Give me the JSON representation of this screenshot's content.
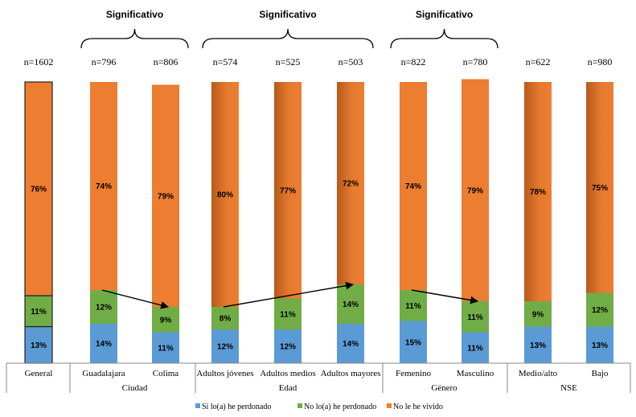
{
  "chart_data": {
    "type": "bar",
    "stacked": true,
    "categories": [
      "General",
      "Guadalajara",
      "Colima",
      "Adultos jóvenes",
      "Adultos medios",
      "Adultos mayores",
      "Femenino",
      "Masculino",
      "Medio/alto",
      "Bajo"
    ],
    "n_labels": [
      "n=1602",
      "n=796",
      "n=806",
      "n=574",
      "n=525",
      "n=503",
      "n=822",
      "n=780",
      "n=622",
      "n=980"
    ],
    "groups": [
      {
        "label": "",
        "start": 0,
        "end": 0
      },
      {
        "label": "Ciudad",
        "start": 1,
        "end": 2
      },
      {
        "label": "Edad",
        "start": 3,
        "end": 5
      },
      {
        "label": "Género",
        "start": 6,
        "end": 7
      },
      {
        "label": "NSE",
        "start": 8,
        "end": 9
      }
    ],
    "series": [
      {
        "name": "Si lo(a) he perdonado",
        "color": "#5b9bd5",
        "values": [
          13,
          14,
          11,
          12,
          12,
          14,
          15,
          11,
          13,
          13
        ],
        "labels": [
          "13%",
          "14%",
          "11%",
          "12%",
          "12%",
          "14%",
          "15%",
          "11%",
          "13%",
          "13%"
        ]
      },
      {
        "name": "No lo(a) he perdonado",
        "color": "#70ad47",
        "values": [
          11,
          12,
          9,
          8,
          11,
          14,
          11,
          11,
          9,
          12
        ],
        "labels": [
          "11%",
          "12%",
          "9%",
          "8%",
          "11%",
          "14%",
          "11%",
          "11%",
          "9%",
          "12%"
        ]
      },
      {
        "name": "No le he vivido",
        "color": "#ed7d31",
        "values": [
          76,
          74,
          79,
          80,
          77,
          72,
          74,
          79,
          78,
          75
        ],
        "labels": [
          "76%",
          "74%",
          "79%",
          "80%",
          "77%",
          "72%",
          "74%",
          "79%",
          "78%",
          "75%"
        ]
      }
    ],
    "significance": [
      {
        "label": "Significativo",
        "start": 1,
        "end": 2
      },
      {
        "label": "Significativo",
        "start": 3,
        "end": 5
      },
      {
        "label": "Significativo",
        "start": 6,
        "end": 7
      }
    ],
    "arrows": [
      {
        "from": 1,
        "to": 2
      },
      {
        "from": 3,
        "to": 5
      },
      {
        "from": 6,
        "to": 7
      }
    ],
    "ylim": [
      0,
      100
    ],
    "legend_position": "bottom"
  }
}
